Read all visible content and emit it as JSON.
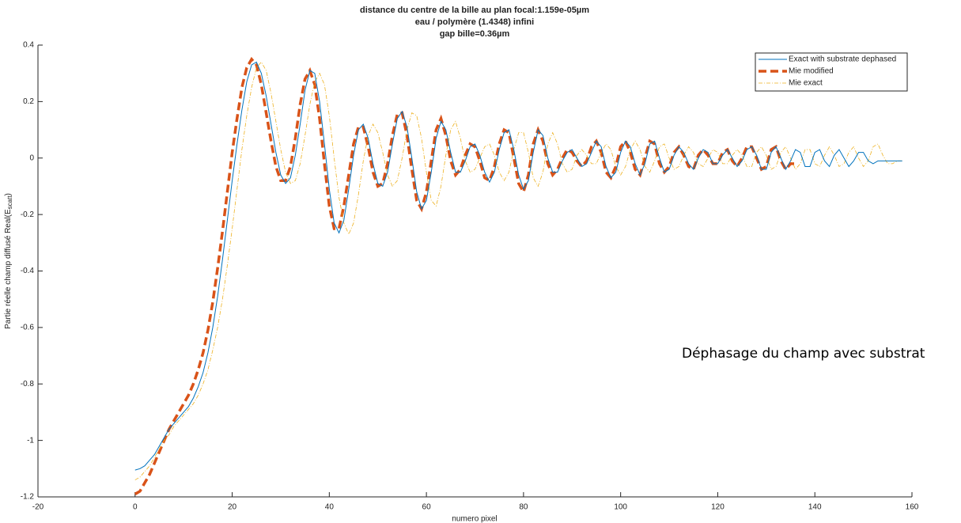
{
  "chart_data": {
    "type": "line",
    "title": [
      "distance du centre de la bille au plan focal:1.159e-05µm",
      "eau / polymère (1.4348) infini",
      "gap bille=0.36µm"
    ],
    "xlabel": "numero pixel",
    "ylabel": [
      "Partie réelle champ diffusé  Real(E",
      "scatt",
      ")"
    ],
    "annotation": "Déphasage du champ avec substrat",
    "legend": "northeast",
    "xlim": [
      -20,
      160
    ],
    "xticks": [
      -20,
      0,
      20,
      40,
      60,
      80,
      100,
      120,
      140,
      160
    ],
    "ylim": [
      -1.2,
      0.4
    ],
    "yticks": [
      -1.2,
      -1,
      -0.8,
      -0.6,
      -0.4,
      -0.2,
      0,
      0.2,
      0.4
    ],
    "x": [
      0,
      1,
      2,
      3,
      4,
      5,
      6,
      7,
      8,
      9,
      10,
      11,
      12,
      13,
      14,
      15,
      16,
      17,
      18,
      19,
      20,
      21,
      22,
      23,
      24,
      25,
      26,
      27,
      28,
      29,
      30,
      31,
      32,
      33,
      34,
      35,
      36,
      37,
      38,
      39,
      40,
      41,
      42,
      43,
      44,
      45,
      46,
      47,
      48,
      49,
      50,
      51,
      52,
      53,
      54,
      55,
      56,
      57,
      58,
      59,
      60,
      61,
      62,
      63,
      64,
      65,
      66,
      67,
      68,
      69,
      70,
      71,
      72,
      73,
      74,
      75,
      76,
      77,
      78,
      79,
      80,
      81,
      82,
      83,
      84,
      85,
      86,
      87,
      88,
      89,
      90,
      91,
      92,
      93,
      94,
      95,
      96,
      97,
      98,
      99,
      100,
      101,
      102,
      103,
      104,
      105,
      106,
      107,
      108,
      109,
      110,
      111,
      112,
      113,
      114,
      115,
      116,
      117,
      118,
      119,
      120,
      121,
      122,
      123,
      124,
      125,
      126,
      127,
      128,
      129,
      130,
      131,
      132,
      133,
      134,
      135,
      136,
      137,
      138,
      139,
      140,
      141,
      142,
      143,
      144,
      145,
      146,
      147,
      148,
      149,
      150,
      151,
      152,
      153,
      154,
      155,
      156,
      157,
      158
    ],
    "series": [
      {
        "name": "Exact with substrate dephased",
        "color": "#0072bd",
        "style": "solid",
        "values": [
          -1.105,
          -1.1,
          -1.09,
          -1.07,
          -1.05,
          -1.02,
          -0.99,
          -0.96,
          -0.94,
          -0.92,
          -0.9,
          -0.88,
          -0.85,
          -0.81,
          -0.76,
          -0.69,
          -0.6,
          -0.49,
          -0.36,
          -0.22,
          -0.08,
          0.05,
          0.17,
          0.27,
          0.33,
          0.34,
          0.3,
          0.22,
          0.12,
          0.02,
          -0.06,
          -0.09,
          -0.07,
          0.01,
          0.12,
          0.24,
          0.31,
          0.3,
          0.2,
          0.05,
          -0.11,
          -0.23,
          -0.265,
          -0.22,
          -0.11,
          0.01,
          0.1,
          0.12,
          0.07,
          -0.02,
          -0.09,
          -0.1,
          -0.05,
          0.05,
          0.14,
          0.165,
          0.11,
          0,
          -0.12,
          -0.18,
          -0.15,
          -0.05,
          0.07,
          0.13,
          0.1,
          0.02,
          -0.05,
          -0.05,
          -0.01,
          0.04,
          0.05,
          0.01,
          -0.05,
          -0.085,
          -0.05,
          0.03,
          0.09,
          0.1,
          0.03,
          -0.06,
          -0.11,
          -0.08,
          0.02,
          0.1,
          0.08,
          0,
          -0.05,
          -0.05,
          -0.01,
          0.02,
          0.03,
          0,
          -0.03,
          -0.02,
          0.02,
          0.06,
          0.04,
          -0.03,
          -0.07,
          -0.05,
          0.02,
          0.06,
          0.04,
          -0.02,
          -0.06,
          -0.02,
          0.05,
          0.06,
          0,
          -0.05,
          -0.04,
          0.01,
          0.04,
          0.02,
          -0.02,
          -0.04,
          0,
          0.03,
          0.02,
          -0.02,
          -0.02,
          0.01,
          0.03,
          0,
          -0.03,
          -0.01,
          0.03,
          0.04,
          0.01,
          -0.04,
          -0.04,
          0.02,
          0.04,
          0,
          -0.04,
          -0.01,
          0.03,
          0.02,
          -0.03,
          -0.03,
          0.02,
          0.03,
          -0.01,
          -0.03,
          0.01,
          0.03,
          0,
          -0.03,
          -0.01,
          0.02,
          0.02,
          -0.01,
          -0.02,
          -0.01,
          -0.01,
          -0.01,
          -0.01,
          -0.01,
          -0.01
        ]
      },
      {
        "name": "Mie modified",
        "color": "#d95319",
        "style": "dashed",
        "values": [
          -1.19,
          -1.18,
          -1.15,
          -1.12,
          -1.08,
          -1.04,
          -1,
          -0.96,
          -0.93,
          -0.9,
          -0.87,
          -0.84,
          -0.8,
          -0.75,
          -0.69,
          -0.61,
          -0.51,
          -0.39,
          -0.26,
          -0.12,
          0.02,
          0.14,
          0.25,
          0.32,
          0.35,
          0.33,
          0.26,
          0.16,
          0.06,
          -0.03,
          -0.08,
          -0.08,
          -0.03,
          0.07,
          0.19,
          0.28,
          0.31,
          0.26,
          0.14,
          -0.02,
          -0.17,
          -0.25,
          -0.25,
          -0.17,
          -0.06,
          0.05,
          0.11,
          0.11,
          0.04,
          -0.05,
          -0.1,
          -0.09,
          -0.02,
          0.08,
          0.155,
          0.16,
          0.08,
          -0.04,
          -0.15,
          -0.18,
          -0.12,
          -0.01,
          0.1,
          0.14,
          0.08,
          -0.01,
          -0.06,
          -0.04,
          0.01,
          0.05,
          0.04,
          -0.01,
          -0.07,
          -0.08,
          -0.03,
          0.05,
          0.1,
          0.09,
          0,
          -0.09,
          -0.12,
          -0.06,
          0.05,
          0.1,
          0.06,
          -0.02,
          -0.06,
          -0.04,
          0,
          0.03,
          0.02,
          -0.01,
          -0.03,
          -0.01,
          0.04,
          0.06,
          0.02,
          -0.05,
          -0.07,
          -0.03,
          0.04,
          0.06,
          0.02,
          -0.04,
          -0.06,
          0,
          0.06,
          0.05,
          -0.02,
          -0.05,
          -0.03,
          0.02,
          0.04,
          0.01,
          -0.03,
          -0.04,
          0.01,
          0.03,
          0.01,
          -0.02,
          -0.02,
          0.02,
          0.03,
          -0.01,
          -0.03,
          0,
          0.04,
          0.04,
          0,
          -0.04,
          -0.03,
          0.03,
          0.04,
          -0.01,
          -0.04,
          -0.02,
          -0.02,
          null,
          null,
          null,
          null,
          null,
          null,
          null,
          null,
          null,
          null,
          null,
          null,
          null,
          null,
          null,
          null,
          null,
          null,
          null,
          null,
          null,
          null
        ]
      },
      {
        "name": "Mie exact",
        "color": "#edb120",
        "style": "dashdot",
        "values": [
          -1.14,
          -1.13,
          -1.11,
          -1.09,
          -1.06,
          -1.03,
          -1,
          -0.98,
          -0.95,
          -0.93,
          -0.91,
          -0.89,
          -0.87,
          -0.84,
          -0.8,
          -0.75,
          -0.68,
          -0.6,
          -0.5,
          -0.38,
          -0.25,
          -0.11,
          0.03,
          0.15,
          0.25,
          0.32,
          0.34,
          0.31,
          0.23,
          0.13,
          0.03,
          -0.05,
          -0.09,
          -0.08,
          -0.02,
          0.08,
          0.19,
          0.27,
          0.3,
          0.26,
          0.15,
          0,
          -0.14,
          -0.23,
          -0.27,
          -0.23,
          -0.13,
          -0.01,
          0.08,
          0.12,
          0.09,
          0.02,
          -0.06,
          -0.1,
          -0.08,
          0,
          0.1,
          0.16,
          0.15,
          0.07,
          -0.05,
          -0.15,
          -0.17,
          -0.1,
          0.01,
          0.1,
          0.13,
          0.07,
          -0.01,
          -0.05,
          -0.04,
          0,
          0.04,
          0.05,
          0.01,
          -0.05,
          -0.08,
          -0.05,
          0.03,
          0.09,
          0.09,
          0.02,
          -0.07,
          -0.1,
          -0.05,
          0.05,
          0.09,
          0.05,
          -0.02,
          -0.05,
          -0.04,
          0.01,
          0.03,
          0.01,
          -0.02,
          -0.02,
          0.02,
          0.05,
          0.03,
          -0.03,
          -0.06,
          -0.03,
          0.03,
          0.06,
          0.03,
          -0.03,
          -0.05,
          -0.01,
          0.04,
          0.05,
          0,
          -0.04,
          -0.03,
          0.01,
          0.04,
          0.02,
          -0.02,
          -0.03,
          0,
          0.03,
          0.02,
          -0.02,
          -0.02,
          0.01,
          0.03,
          0.01,
          -0.03,
          -0.03,
          0.02,
          0.04,
          0.01,
          -0.04,
          -0.03,
          0.02,
          0.04,
          0,
          -0.04,
          -0.02,
          0.03,
          0.03,
          -0.02,
          -0.03,
          0.01,
          0.04,
          0.01,
          -0.03,
          -0.02,
          0.02,
          0.04,
          0,
          -0.03,
          -0.01,
          0.04,
          0.05,
          0.01,
          -0.02,
          -0.02,
          -0.01,
          -0.01
        ]
      }
    ]
  }
}
